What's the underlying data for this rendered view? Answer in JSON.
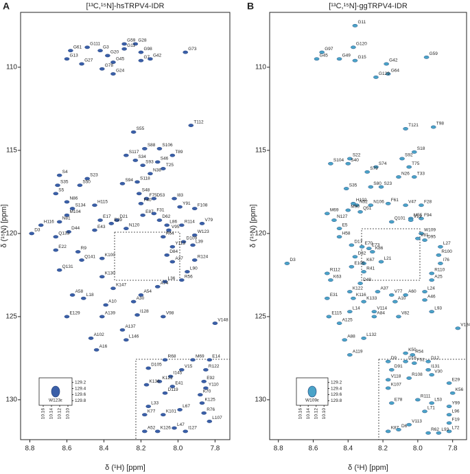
{
  "chart_data": [
    {
      "type": "scatter",
      "panel_label": "A",
      "title": "[¹³C,¹⁵N]-hsTRPV4-IDR",
      "x_label": "δ (¹H) [ppm]",
      "y_label": "δ (¹⁵N) [ppm]",
      "color": "#3a5fa8",
      "xlim": [
        8.85,
        7.72
      ],
      "ylim": [
        106.7,
        132.4
      ],
      "xticks": [
        8.8,
        8.6,
        8.4,
        8.2,
        {
          "value": 8,
          "label": "8.0"
        },
        7.8
      ],
      "yticks": [
        110,
        115,
        120,
        125,
        130
      ],
      "labels": [
        "G61",
        "G111",
        "G3",
        "G59",
        "G28",
        "G20",
        "G13",
        "G27",
        "G11",
        "G98",
        "G45",
        "G78",
        "G42",
        "G7",
        "G24",
        "G73",
        "T112",
        "S55",
        "S88",
        "S106",
        "S117",
        "T89",
        "S34",
        "S46",
        "S93",
        "T25",
        "N38",
        "S4",
        "S23",
        "S94",
        "S118",
        "S35",
        "S50",
        "S5",
        "S48",
        "I83",
        "N86",
        "F75",
        "D53",
        "H115",
        "F40",
        "Y91",
        "F108",
        "S134",
        "F31",
        "M104",
        "E17",
        "D21",
        "E87",
        "R114",
        "V79",
        "N81",
        "E29",
        "N120",
        "D62",
        "H116",
        "E43",
        "L86",
        "D44",
        "V95",
        "W123",
        "Q133",
        "R64",
        "D109",
        "L39",
        "E22",
        "R9",
        "Y113",
        "D84",
        "R124",
        "Q141",
        "K100",
        "A37",
        "Q131",
        "L90",
        "R56",
        "K130",
        "L36",
        "A74",
        "D3",
        "K147",
        "A54",
        "A58",
        "L18",
        "A30",
        "A10",
        "I128",
        "V98",
        "E129",
        "A139",
        "V148",
        "A137",
        "A102",
        "L146",
        "A16",
        "R68",
        "M69",
        "E14",
        "D105",
        "V15",
        "R122",
        "I145",
        "E92",
        "K121",
        "Y110",
        "K136",
        "E41",
        "D119",
        "K70",
        "L33",
        "L67",
        "K125",
        "K77",
        "K101",
        "R76",
        "L107",
        "A52",
        "K126",
        "L47",
        "I127"
      ],
      "x": [
        8.58,
        8.49,
        8.42,
        8.29,
        8.23,
        8.38,
        8.6,
        8.52,
        8.29,
        8.2,
        8.35,
        8.41,
        8.15,
        8.2,
        8.35,
        7.96,
        7.93,
        8.24,
        8.18,
        8.1,
        8.28,
        8.03,
        8.23,
        8.11,
        8.19,
        8.08,
        8.15,
        8.64,
        8.49,
        8.3,
        8.22,
        8.65,
        8.53,
        8.66,
        8.21,
        8.02,
        8.6,
        8.17,
        8.13,
        8.45,
        8.2,
        7.99,
        7.91,
        8.57,
        8.13,
        8.6,
        8.42,
        8.33,
        8.19,
        7.98,
        7.87,
        8.64,
        8.36,
        8.28,
        8.1,
        8.74,
        8.45,
        8.06,
        8.59,
        8.05,
        7.91,
        8.66,
        8.08,
        7.97,
        7.92,
        8.66,
        8.54,
        8.03,
        8.06,
        7.91,
        8.52,
        8.41,
        8.03,
        8.64,
        7.95,
        7.98,
        8.41,
        8.07,
        8.11,
        8.79,
        8.35,
        8.2,
        8.57,
        8.51,
        8.24,
        8.39,
        8.22,
        8.08,
        8.6,
        8.41,
        7.8,
        8.3,
        8.47,
        8.28,
        8.44,
        8.07,
        7.92,
        7.83,
        8.16,
        7.98,
        7.85,
        8.04,
        7.86,
        8.1,
        7.85,
        8.17,
        8.03,
        8.07,
        7.88,
        8.16,
        7.99,
        7.87,
        8.18,
        8.08,
        7.86,
        7.83,
        8.18,
        8.11,
        8.02,
        7.96
      ],
      "values": [
        109.0,
        108.8,
        109.0,
        108.6,
        108.6,
        109.3,
        109.5,
        109.8,
        108.9,
        109.1,
        109.7,
        110.1,
        109.5,
        109.6,
        110.4,
        109.1,
        113.5,
        113.9,
        114.9,
        114.9,
        115.3,
        115.3,
        115.6,
        115.7,
        115.9,
        116.1,
        116.4,
        116.5,
        116.7,
        117.0,
        116.9,
        117.1,
        117.1,
        117.6,
        117.6,
        117.9,
        118.1,
        117.9,
        117.9,
        118.3,
        118.2,
        118.4,
        118.5,
        118.5,
        118.8,
        118.9,
        119.2,
        119.2,
        118.9,
        119.5,
        119.4,
        119.3,
        119.4,
        119.7,
        119.2,
        119.5,
        119.8,
        119.5,
        119.9,
        119.8,
        120.1,
        120.2,
        120.2,
        120.5,
        120.7,
        121.0,
        121.1,
        120.8,
        121.3,
        121.6,
        121.6,
        121.5,
        121.7,
        122.2,
        122.3,
        122.8,
        122.6,
        122.9,
        123.2,
        120.0,
        123.3,
        123.7,
        123.7,
        123.9,
        124.1,
        124.3,
        124.9,
        125.0,
        125.0,
        125.0,
        125.4,
        125.8,
        126.3,
        126.4,
        127.0,
        127.6,
        127.6,
        127.6,
        128.1,
        128.2,
        128.2,
        128.6,
        128.9,
        128.9,
        129.3,
        129.1,
        129.2,
        129.6,
        129.7,
        130.4,
        130.6,
        130.2,
        130.9,
        130.9,
        130.8,
        131.3,
        131.9,
        131.9,
        131.7,
        131.9
      ],
      "inset": {
        "label": "W123ε",
        "x": [
          10.13
        ],
        "values": [
          129.5
        ],
        "xlim": [
          10.17,
          10.09
        ],
        "ylim": [
          129.05,
          129.95
        ],
        "xticks": [
          10.16,
          10.14,
          10.12,
          {
            "value": 10.1,
            "label": "10.10"
          }
        ],
        "yticks": [
          129.2,
          129.4,
          129.6,
          129.8
        ]
      }
    },
    {
      "type": "scatter",
      "panel_label": "B",
      "title": "[¹³C,¹⁵N]-ggTRPV4-IDR",
      "x_label": "δ (¹H) [ppm]",
      "y_label": "δ (¹⁵N) [ppm]",
      "color": "#4aa3c8",
      "xlim": [
        8.85,
        7.72
      ],
      "ylim": [
        106.7,
        132.4
      ],
      "xticks": [
        8.8,
        8.6,
        8.4,
        8.2,
        {
          "value": 8,
          "label": "8.0"
        },
        7.8
      ],
      "yticks": [
        110,
        115,
        120,
        125,
        130
      ],
      "labels": [
        "G11",
        "G120",
        "G97",
        "G45",
        "G49",
        "G15",
        "G42",
        "G59",
        "G64",
        "G129",
        "T121",
        "T98",
        "S22",
        "S92",
        "S18",
        "S104",
        "S40",
        "S74",
        "T75",
        "S79",
        "N26",
        "T33",
        "S35",
        "S80",
        "S23",
        "F61",
        "V47",
        "F28",
        "H102",
        "N52",
        "N106",
        "M69",
        "M90",
        "Q51",
        "M55",
        "F94",
        "N127",
        "Q101",
        "V13",
        "E5",
        "H58",
        "W109",
        "V81",
        "D95",
        "D17",
        "E70",
        "E73",
        "L27",
        "K86",
        "D32",
        "R100",
        "L21",
        "K67",
        "I76",
        "E105",
        "R41",
        "R110",
        "R112",
        "A25",
        "K63",
        "D48",
        "L24",
        "A37",
        "A60",
        "K122",
        "E31",
        "K116",
        "K133",
        "A10",
        "A46",
        "V77",
        "D3",
        "L14",
        "V114",
        "A84",
        "V82",
        "E115",
        "A125",
        "L93",
        "V134",
        "A88",
        "L132",
        "A119",
        "K50",
        "R54",
        "D9",
        "D16",
        "F52",
        "D12",
        "D91",
        "I131",
        "V30",
        "V118",
        "R108",
        "E29",
        "K107",
        "K56",
        "R111",
        "E78",
        "L53",
        "Y99",
        "L96",
        "L71",
        "F19",
        "L72",
        "K87",
        "D6",
        "V113",
        "R62",
        "L93"
      ],
      "x": [
        8.36,
        8.37,
        8.55,
        8.58,
        8.45,
        8.36,
        8.18,
        7.95,
        8.17,
        8.24,
        8.07,
        7.91,
        8.39,
        8.09,
        8.02,
        8.5,
        8.4,
        8.24,
        8.05,
        8.29,
        8.11,
        8.02,
        8.41,
        8.27,
        8.21,
        8.17,
        8.07,
        7.98,
        8.37,
        8.35,
        8.27,
        8.52,
        8.4,
        8.33,
        8.04,
        7.98,
        8.48,
        8.15,
        8.04,
        8.45,
        8.45,
        7.98,
        8.0,
        7.96,
        8.38,
        8.32,
        8.28,
        7.87,
        8.26,
        8.36,
        7.88,
        8.21,
        8.31,
        7.87,
        8.38,
        8.31,
        7.92,
        8.52,
        7.92,
        8.5,
        8.33,
        7.96,
        8.23,
        8.07,
        8.39,
        8.52,
        8.37,
        8.31,
        8.13,
        7.96,
        8.15,
        8.75,
        8.39,
        8.25,
        8.25,
        8.11,
        8.51,
        8.45,
        7.92,
        7.77,
        8.42,
        8.31,
        8.39,
        8.07,
        8.03,
        8.17,
        8.07,
        8.02,
        7.94,
        8.15,
        7.94,
        7.92,
        8.17,
        8.05,
        7.82,
        8.17,
        7.8,
        8.0,
        8.15,
        7.92,
        7.82,
        7.82,
        7.96,
        7.82,
        7.82,
        8.17,
        8.11,
        8.05,
        7.94,
        7.88
      ],
      "values": [
        107.5,
        108.8,
        109.1,
        109.5,
        109.5,
        109.6,
        109.8,
        109.4,
        110.4,
        110.6,
        113.7,
        113.6,
        115.5,
        115.5,
        115.1,
        115.8,
        115.8,
        116.0,
        116.0,
        116.3,
        116.6,
        116.6,
        117.3,
        117.2,
        117.2,
        118.2,
        118.3,
        118.3,
        118.2,
        118.3,
        118.3,
        118.8,
        118.6,
        118.7,
        119.1,
        119.1,
        119.2,
        119.3,
        119.2,
        119.7,
        120.2,
        120.0,
        120.3,
        120.4,
        120.7,
        120.8,
        120.9,
        120.8,
        121.1,
        121.4,
        121.3,
        121.7,
        121.8,
        121.8,
        122.0,
        122.3,
        122.4,
        122.4,
        122.8,
        122.8,
        123.0,
        123.5,
        123.5,
        123.7,
        123.5,
        123.9,
        123.9,
        124.1,
        124.1,
        124.0,
        123.7,
        121.8,
        124.7,
        124.7,
        125.0,
        125.0,
        125.0,
        125.4,
        124.7,
        125.7,
        126.4,
        126.3,
        127.3,
        127.2,
        127.3,
        127.7,
        127.7,
        127.8,
        127.7,
        128.2,
        128.2,
        128.5,
        128.8,
        128.7,
        129.0,
        129.3,
        129.6,
        130.0,
        130.2,
        130.2,
        130.4,
        130.9,
        130.7,
        131.4,
        131.9,
        131.9,
        131.8,
        131.5,
        132.0,
        132.0
      ],
      "inset": {
        "label": "W109ε",
        "x": [
          10.13
        ],
        "values": [
          129.5
        ],
        "xlim": [
          10.17,
          10.09
        ],
        "ylim": [
          129.05,
          129.95
        ],
        "xticks": [
          10.16,
          10.14,
          10.12,
          {
            "value": 10.1,
            "label": "10.10"
          }
        ],
        "yticks": [
          129.2,
          129.4,
          129.6,
          129.8
        ]
      }
    }
  ]
}
